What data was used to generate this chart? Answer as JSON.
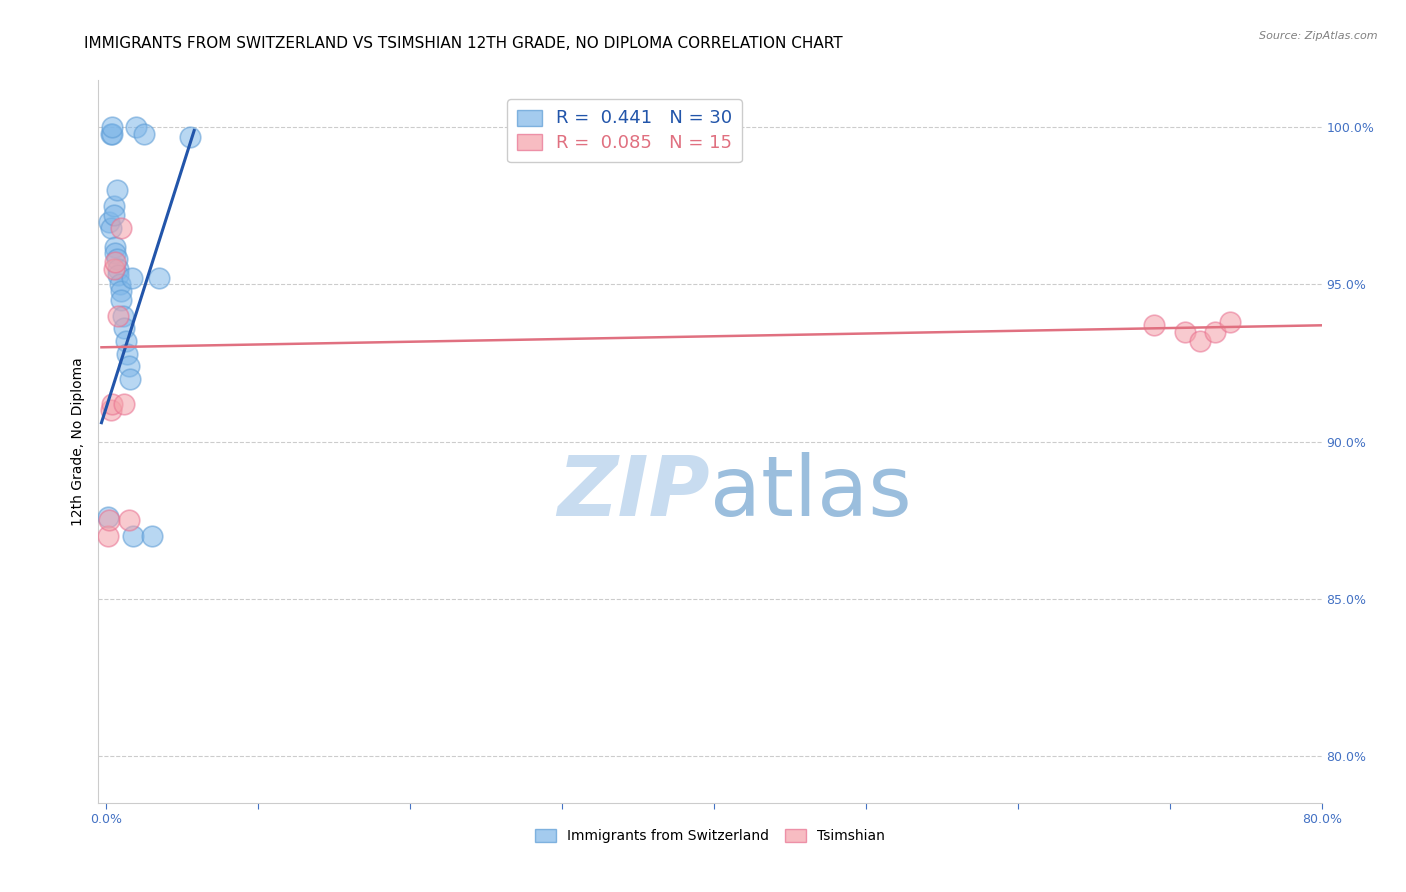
{
  "title": "IMMIGRANTS FROM SWITZERLAND VS TSIMSHIAN 12TH GRADE, NO DIPLOMA CORRELATION CHART",
  "source": "Source: ZipAtlas.com",
  "ylabel": "12th Grade, No Diploma",
  "ytick_values": [
    0.8,
    0.85,
    0.9,
    0.95,
    1.0
  ],
  "xlim": [
    -0.5,
    80.0
  ],
  "ylim": [
    0.785,
    1.015
  ],
  "legend_blue_r": "R = ",
  "legend_blue_r_val": "0.441",
  "legend_blue_n": "  N = ",
  "legend_blue_n_val": "30",
  "legend_pink_r": "R = ",
  "legend_pink_r_val": "0.085",
  "legend_pink_n": "  N = ",
  "legend_pink_n_val": "15",
  "legend_label_blue": "Immigrants from Switzerland",
  "legend_label_pink": "Tsimshian",
  "blue_scatter_x": [
    0.1,
    0.2,
    0.3,
    0.3,
    0.4,
    0.4,
    0.5,
    0.5,
    0.6,
    0.6,
    0.7,
    0.7,
    0.8,
    0.8,
    0.9,
    1.0,
    1.0,
    1.1,
    1.2,
    1.3,
    1.4,
    1.5,
    1.6,
    1.7,
    1.8,
    2.0,
    2.5,
    3.0,
    3.5,
    5.5
  ],
  "blue_scatter_y": [
    0.876,
    0.97,
    0.968,
    0.998,
    0.998,
    1.0,
    0.975,
    0.972,
    0.962,
    0.96,
    0.958,
    0.98,
    0.955,
    0.953,
    0.95,
    0.948,
    0.945,
    0.94,
    0.936,
    0.932,
    0.928,
    0.924,
    0.92,
    0.952,
    0.87,
    1.0,
    0.998,
    0.87,
    0.952,
    0.997
  ],
  "pink_scatter_x": [
    0.1,
    0.2,
    0.3,
    0.4,
    0.5,
    0.6,
    0.8,
    1.0,
    1.2,
    1.5,
    69.0,
    71.0,
    72.0,
    73.0,
    74.0
  ],
  "pink_scatter_y": [
    0.87,
    0.875,
    0.91,
    0.912,
    0.955,
    0.957,
    0.94,
    0.968,
    0.912,
    0.875,
    0.937,
    0.935,
    0.932,
    0.935,
    0.938
  ],
  "blue_line_x": [
    -0.3,
    5.8
  ],
  "blue_line_y": [
    0.906,
    0.999
  ],
  "pink_line_x": [
    -0.3,
    80.0
  ],
  "pink_line_y": [
    0.93,
    0.937
  ],
  "blue_color": "#7EB6E8",
  "pink_color": "#F4A0A8",
  "blue_scatter_edge": "#5B9BD5",
  "pink_scatter_edge": "#E87090",
  "blue_line_color": "#2255AA",
  "pink_line_color": "#E07080",
  "axis_color": "#4472C4",
  "grid_color": "#CCCCCC",
  "watermark_zip": "ZIP",
  "watermark_atlas": "atlas",
  "watermark_color_zip": "#C8DCF0",
  "watermark_color_atlas": "#9BBEDD",
  "title_fontsize": 11,
  "axis_label_fontsize": 10,
  "tick_fontsize": 9,
  "source_fontsize": 8
}
